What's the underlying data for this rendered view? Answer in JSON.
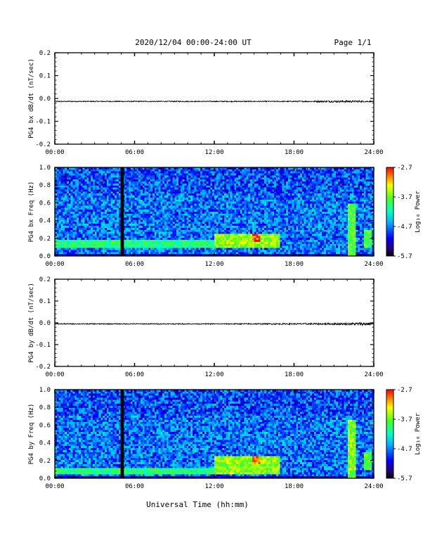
{
  "header": {
    "title": "2020/12/04  00:00-24:00 UT",
    "page": "Page 1/1"
  },
  "xaxis": {
    "label": "Universal Time (hh:mm)",
    "range_hours": [
      0,
      24
    ],
    "ticks": [
      "00:00",
      "06:00",
      "12:00",
      "18:00",
      "24:00"
    ]
  },
  "chart_data": [
    {
      "type": "line",
      "ylabel": "PG4 bx dB/dt (nT/sec)",
      "ylim": [
        -0.2,
        0.2
      ],
      "yticks": [
        "0.2",
        "0.1",
        "0.0",
        "-0.1",
        "-0.2"
      ],
      "series": [
        {
          "hours": [
            0,
            4.9,
            5.1,
            12,
            18,
            21.5,
            22.5,
            24
          ],
          "values": [
            -0.013,
            -0.013,
            -0.013,
            -0.013,
            -0.013,
            -0.013,
            -0.013,
            -0.013
          ],
          "noise_amplitude": [
            0.002,
            0.002,
            0.002,
            0.002,
            0.002,
            0.004,
            0.004,
            0.002
          ]
        }
      ]
    },
    {
      "type": "heatmap",
      "ylabel": "PG4 bx Freq (Hz)",
      "ylim": [
        0.0,
        1.0
      ],
      "yticks": [
        "1.0",
        "0.8",
        "0.6",
        "0.4",
        "0.2",
        "0.0"
      ],
      "colorbar": {
        "label": "Log₁₀ Power",
        "range": [
          -5.7,
          -2.7
        ],
        "ticks": [
          "-2.7",
          "-3.7",
          "-4.7",
          "-5.7"
        ]
      },
      "gap_hours": [
        4.95,
        5.2
      ],
      "features": [
        {
          "hours": [
            0,
            24
          ],
          "freq": [
            0.0,
            0.02
          ],
          "level": -5.3
        },
        {
          "hours": [
            0,
            12
          ],
          "freq": [
            0.1,
            0.18
          ],
          "level": -4.0
        },
        {
          "hours": [
            12,
            17
          ],
          "freq": [
            0.1,
            0.25
          ],
          "level": -3.6
        },
        {
          "hours": [
            14.8,
            15.5
          ],
          "freq": [
            0.15,
            0.25
          ],
          "level": -2.9
        },
        {
          "hours": [
            22,
            22.7
          ],
          "freq": [
            0.0,
            0.6
          ],
          "level": -3.8
        },
        {
          "hours": [
            23.2,
            23.8
          ],
          "freq": [
            0.1,
            0.3
          ],
          "level": -3.8
        }
      ]
    },
    {
      "type": "line",
      "ylabel": "PG4 by dB/dt (nT/sec)",
      "ylim": [
        -0.2,
        0.2
      ],
      "yticks": [
        "0.2",
        "0.1",
        "0.0",
        "-0.1",
        "-0.2"
      ],
      "series": [
        {
          "hours": [
            0,
            4.9,
            5.1,
            12,
            18,
            21.5,
            22.5,
            23.5,
            24
          ],
          "values": [
            -0.005,
            -0.005,
            -0.005,
            -0.005,
            -0.005,
            -0.005,
            -0.005,
            -0.005,
            -0.005
          ],
          "noise_amplitude": [
            0.002,
            0.002,
            0.002,
            0.002,
            0.003,
            0.004,
            0.006,
            0.007,
            0.003
          ]
        }
      ]
    },
    {
      "type": "heatmap",
      "ylabel": "PG4 by Freq (Hz)",
      "ylim": [
        0.0,
        1.0
      ],
      "yticks": [
        "1.0",
        "0.8",
        "0.6",
        "0.4",
        "0.2",
        "0.0"
      ],
      "colorbar": {
        "label": "Log₁₀ Power",
        "range": [
          -5.7,
          -2.7
        ],
        "ticks": [
          "-2.7",
          "-3.7",
          "-4.7",
          "-5.7"
        ]
      },
      "gap_hours": [
        4.95,
        5.2
      ],
      "features": [
        {
          "hours": [
            0,
            24
          ],
          "freq": [
            0.0,
            0.02
          ],
          "level": -5.3
        },
        {
          "hours": [
            0,
            12
          ],
          "freq": [
            0.05,
            0.12
          ],
          "level": -4.0
        },
        {
          "hours": [
            12,
            17
          ],
          "freq": [
            0.05,
            0.25
          ],
          "level": -3.6
        },
        {
          "hours": [
            14.8,
            15.5
          ],
          "freq": [
            0.15,
            0.25
          ],
          "level": -3.0
        },
        {
          "hours": [
            22,
            22.7
          ],
          "freq": [
            0.0,
            0.65
          ],
          "level": -3.6
        },
        {
          "hours": [
            23.2,
            23.8
          ],
          "freq": [
            0.1,
            0.3
          ],
          "level": -3.8
        }
      ]
    }
  ]
}
